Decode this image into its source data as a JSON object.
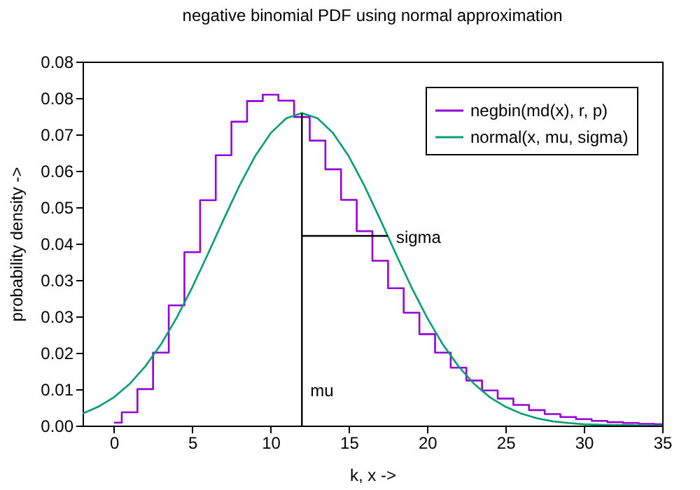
{
  "chart_data": {
    "type": "line",
    "title": "negative binomial PDF using normal approximation",
    "xlabel": "k, x ->",
    "ylabel": "probability density ->",
    "xlim": [
      -2,
      35
    ],
    "xticks": [
      0,
      5,
      10,
      15,
      20,
      25,
      30,
      35
    ],
    "ylim": [
      0,
      0.0848
    ],
    "yticks": [
      {
        "value": 0,
        "label": "0.00"
      },
      {
        "value": 0.00848,
        "label": "0.01"
      },
      {
        "value": 0.01696,
        "label": "0.02"
      },
      {
        "value": 0.02544,
        "label": "0.03"
      },
      {
        "value": 0.03392,
        "label": "0.03"
      },
      {
        "value": 0.0424,
        "label": "0.04"
      },
      {
        "value": 0.05088,
        "label": "0.05"
      },
      {
        "value": 0.05936,
        "label": "0.06"
      },
      {
        "value": 0.06784,
        "label": "0.07"
      },
      {
        "value": 0.07632,
        "label": "0.08"
      },
      {
        "value": 0.0848,
        "label": "0.08"
      }
    ],
    "grid": false,
    "legend": "top right",
    "marker": "none",
    "line_style": "solid",
    "series": [
      {
        "name": "negbin(md(x), r, p)",
        "type": "step",
        "color": "#9400d3",
        "x": [
          0,
          1,
          2,
          3,
          4,
          5,
          6,
          7,
          8,
          9,
          10,
          11,
          12,
          13,
          14,
          15,
          16,
          17,
          18,
          19,
          20,
          21,
          22,
          23,
          24,
          25,
          26,
          27,
          28,
          29,
          30,
          31,
          32,
          33,
          34,
          35
        ],
        "values": [
          0.0007,
          0.0031,
          0.0085,
          0.017,
          0.028,
          0.0404,
          0.0525,
          0.063,
          0.0708,
          0.0756,
          0.0771,
          0.0757,
          0.0719,
          0.0664,
          0.0597,
          0.0526,
          0.0453,
          0.0384,
          0.032,
          0.0263,
          0.0213,
          0.017,
          0.0135,
          0.0105,
          0.0082,
          0.0063,
          0.0048,
          0.0036,
          0.0027,
          0.002,
          0.0015,
          0.0011,
          0.0008,
          0.0006,
          0.0004,
          0.0003
        ]
      },
      {
        "name": "normal(x, mu, sigma)",
        "type": "line",
        "color": "#009e73",
        "x": [
          -2,
          -1,
          0,
          1,
          2,
          3,
          4,
          5,
          6,
          7,
          8,
          9,
          10,
          11,
          12,
          13,
          14,
          15,
          16,
          17,
          18,
          19,
          20,
          21,
          22,
          23,
          24,
          25,
          26,
          27,
          28,
          29,
          30,
          31,
          32,
          33,
          34,
          35
        ],
        "values": [
          0.0028,
          0.0044,
          0.0066,
          0.0097,
          0.0138,
          0.0189,
          0.0251,
          0.0322,
          0.04,
          0.048,
          0.0558,
          0.0627,
          0.0681,
          0.0716,
          0.0728,
          0.0716,
          0.0681,
          0.0627,
          0.0558,
          0.048,
          0.04,
          0.0322,
          0.0251,
          0.0189,
          0.0138,
          0.0097,
          0.0066,
          0.0044,
          0.0028,
          0.0017,
          0.001,
          0.0006,
          0.0003,
          0.0002,
          0.0001,
          0.0001,
          0.0,
          0.0
        ]
      },
      {
        "type": "line",
        "color": "#000000",
        "x": [
          12,
          12
        ],
        "values": [
          0,
          0.0728
        ]
      },
      {
        "type": "line",
        "color": "#000000",
        "x": [
          12,
          17.48
        ],
        "values": [
          0.0442,
          0.0442
        ]
      }
    ],
    "annotations": [
      {
        "text": "mu",
        "x": 12,
        "y": 0.0085
      },
      {
        "text": "sigma",
        "x": 17.48,
        "y": 0.0442
      }
    ]
  }
}
